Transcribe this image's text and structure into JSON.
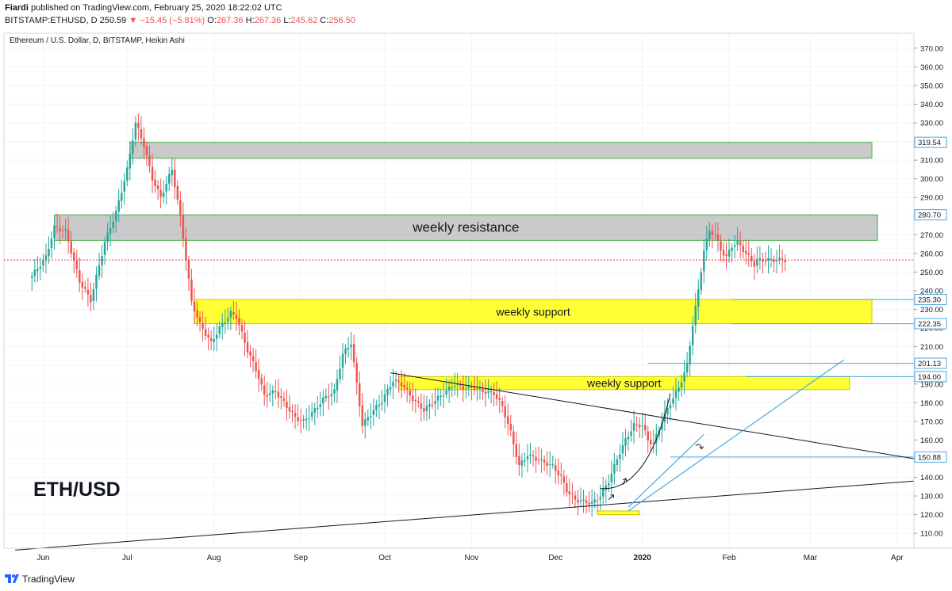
{
  "header": {
    "author": "Fiardi",
    "published": "published on TradingView.com, February 25, 2020 18:22:02 UTC",
    "symbol": "BITSTAMP:ETHUSD, D",
    "last": "250.59",
    "change": "−15.45 (−5.81%)",
    "o_label": "O:",
    "o_value": "267.36",
    "h_label": "H:",
    "h_value": "267.36",
    "l_label": "L:",
    "l_value": "245.62",
    "c_label": "C:",
    "c_value": "256.50"
  },
  "footer": {
    "brand": "TradingView"
  },
  "colors": {
    "up": "#26a69a",
    "down": "#ef5350",
    "resistance_zone": "#9e9e9e",
    "support_zone": "#ffff00",
    "blue_line": "#4aa8e0",
    "price_line": "#e53935",
    "grid": "#f0f3fa"
  },
  "chart_data": {
    "type": "candlestick",
    "title": "Ethereum / U.S. Dollar, D, BITSTAMP, Heikin Ashi",
    "watermark": "ETH/USD",
    "ylim": [
      102,
      378
    ],
    "y_ticks": [
      110,
      120,
      130,
      140,
      150,
      160,
      170,
      180,
      190,
      200,
      210,
      220,
      230,
      240,
      250,
      260,
      270,
      280,
      290,
      300,
      310,
      320,
      330,
      340,
      350,
      360,
      370
    ],
    "x_labels": [
      {
        "t": "Jun",
        "day": 4
      },
      {
        "t": "Jul",
        "day": 34
      },
      {
        "t": "Aug",
        "day": 65
      },
      {
        "t": "Sep",
        "day": 96
      },
      {
        "t": "Oct",
        "day": 126
      },
      {
        "t": "Nov",
        "day": 157
      },
      {
        "t": "Dec",
        "day": 187
      },
      {
        "t": "2020",
        "day": 218
      },
      {
        "t": "Feb",
        "day": 249
      },
      {
        "t": "Mar",
        "day": 278
      },
      {
        "t": "Apr",
        "day": 309
      }
    ],
    "xlim": [
      -10,
      315
    ],
    "last_day": 269,
    "current_price": 256.5,
    "anchors": [
      [
        0,
        248
      ],
      [
        5,
        258
      ],
      [
        8,
        274
      ],
      [
        12,
        272
      ],
      [
        17,
        245
      ],
      [
        21,
        235
      ],
      [
        26,
        266
      ],
      [
        30,
        282
      ],
      [
        34,
        305
      ],
      [
        37,
        330
      ],
      [
        40,
        318
      ],
      [
        43,
        300
      ],
      [
        46,
        290
      ],
      [
        50,
        305
      ],
      [
        53,
        280
      ],
      [
        57,
        234
      ],
      [
        60,
        222
      ],
      [
        64,
        212
      ],
      [
        67,
        220
      ],
      [
        71,
        228
      ],
      [
        73,
        226
      ],
      [
        77,
        208
      ],
      [
        80,
        198
      ],
      [
        83,
        184
      ],
      [
        87,
        186
      ],
      [
        90,
        180
      ],
      [
        94,
        172
      ],
      [
        97,
        170
      ],
      [
        101,
        176
      ],
      [
        104,
        182
      ],
      [
        108,
        186
      ],
      [
        111,
        206
      ],
      [
        114,
        212
      ],
      [
        118,
        168
      ],
      [
        122,
        176
      ],
      [
        125,
        181
      ],
      [
        129,
        192
      ],
      [
        132,
        190
      ],
      [
        136,
        182
      ],
      [
        140,
        176
      ],
      [
        143,
        180
      ],
      [
        147,
        185
      ],
      [
        151,
        190
      ],
      [
        154,
        188
      ],
      [
        158,
        188
      ],
      [
        161,
        186
      ],
      [
        165,
        185
      ],
      [
        168,
        178
      ],
      [
        171,
        164
      ],
      [
        174,
        146
      ],
      [
        177,
        152
      ],
      [
        180,
        150
      ],
      [
        183,
        148
      ],
      [
        186,
        146
      ],
      [
        189,
        140
      ],
      [
        191,
        133
      ],
      [
        194,
        128
      ],
      [
        197,
        127
      ],
      [
        200,
        126
      ],
      [
        203,
        130
      ],
      [
        206,
        138
      ],
      [
        209,
        150
      ],
      [
        212,
        160
      ],
      [
        215,
        168
      ],
      [
        218,
        168
      ],
      [
        220,
        160
      ],
      [
        222,
        158
      ],
      [
        225,
        170
      ],
      [
        228,
        180
      ],
      [
        231,
        188
      ],
      [
        234,
        200
      ],
      [
        236,
        222
      ],
      [
        238,
        240
      ],
      [
        240,
        262
      ],
      [
        242,
        272
      ],
      [
        244,
        270
      ],
      [
        246,
        262
      ],
      [
        248,
        258
      ],
      [
        250,
        264
      ],
      [
        252,
        266
      ],
      [
        254,
        262
      ],
      [
        256,
        258
      ],
      [
        258,
        254
      ],
      [
        259,
        256.5
      ]
    ],
    "zones": [
      {
        "label": "",
        "y1": 311,
        "y2": 319.54,
        "d1": 35,
        "d2": 300,
        "kind": "resistance"
      },
      {
        "label": "weekly resistance",
        "y1": 267,
        "y2": 280.7,
        "d1": 8,
        "d2": 302,
        "kind": "resistance"
      },
      {
        "label": "weekly support",
        "y1": 222.35,
        "y2": 235.3,
        "d1": 58,
        "d2": 300,
        "kind": "support"
      },
      {
        "label": "weekly support",
        "y1": 187,
        "y2": 194,
        "d1": 131,
        "d2": 292,
        "kind": "support"
      },
      {
        "label": "",
        "y1": 120,
        "y2": 122,
        "d1": 202,
        "d2": 217,
        "kind": "support"
      }
    ],
    "price_tags": [
      319.54,
      280.7,
      235.3,
      222.35,
      201.13,
      194.0,
      150.88
    ],
    "h_lines": [
      {
        "y": 201.13,
        "d1": 220,
        "d2": 315
      },
      {
        "y": 150.88,
        "d1": 228,
        "d2": 315
      },
      {
        "y": 235.3,
        "d1": 250,
        "d2": 315
      },
      {
        "y": 222.35,
        "d1": 250,
        "d2": 315
      },
      {
        "y": 194.0,
        "d1": 255,
        "d2": 315
      }
    ],
    "trend_lines": [
      {
        "p1": [
          128,
          196
        ],
        "p2": [
          315,
          150
        ],
        "color": "#131722"
      },
      {
        "p1": [
          -6,
          101
        ],
        "p2": [
          315,
          138
        ],
        "color": "#131722"
      }
    ],
    "channel_lines": [
      {
        "p1": [
          213,
          122
        ],
        "p2": [
          290,
          203
        ],
        "color": "#4aa8e0"
      },
      {
        "p1": [
          213,
          124
        ],
        "p2": [
          240,
          163
        ],
        "color": "#4aa8e0"
      }
    ]
  }
}
